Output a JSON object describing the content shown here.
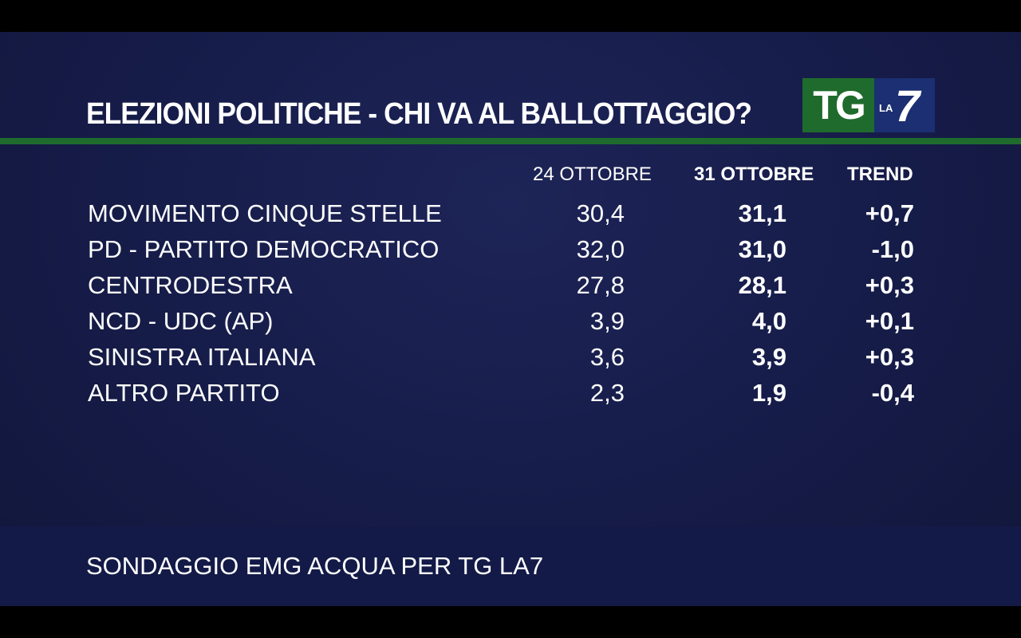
{
  "title": "ELEZIONI POLITICHE - CHI VA AL BALLOTTAGGIO?",
  "logo": {
    "tg": "TG",
    "la": "LA",
    "seven": "7"
  },
  "colors": {
    "background": "#161c48",
    "accent_green": "#1f6b2d",
    "logo_blue": "#1b2f72",
    "text": "#ffffff"
  },
  "chart_data": {
    "type": "table",
    "title": "ELEZIONI POLITICHE - CHI VA AL BALLOTTAGGIO?",
    "columns": [
      "24 OTTOBRE",
      "31 OTTOBRE",
      "TREND"
    ],
    "rows": [
      {
        "party": "MOVIMENTO CINQUE STELLE",
        "oct24": "30,4",
        "oct31": "31,1",
        "trend": "+0,7"
      },
      {
        "party": "PD - PARTITO DEMOCRATICO",
        "oct24": "32,0",
        "oct31": "31,0",
        "trend": "-1,0"
      },
      {
        "party": "CENTRODESTRA",
        "oct24": "27,8",
        "oct31": "28,1",
        "trend": "+0,3"
      },
      {
        "party": "NCD - UDC (AP)",
        "oct24": "3,9",
        "oct31": "4,0",
        "trend": "+0,1"
      },
      {
        "party": "SINISTRA ITALIANA",
        "oct24": "3,6",
        "oct31": "3,9",
        "trend": "+0,3"
      },
      {
        "party": "ALTRO PARTITO",
        "oct24": "2,3",
        "oct31": "1,9",
        "trend": "-0,4"
      }
    ]
  },
  "footer": {
    "source": "SONDAGGIO EMG ACQUA PER TG LA7"
  }
}
